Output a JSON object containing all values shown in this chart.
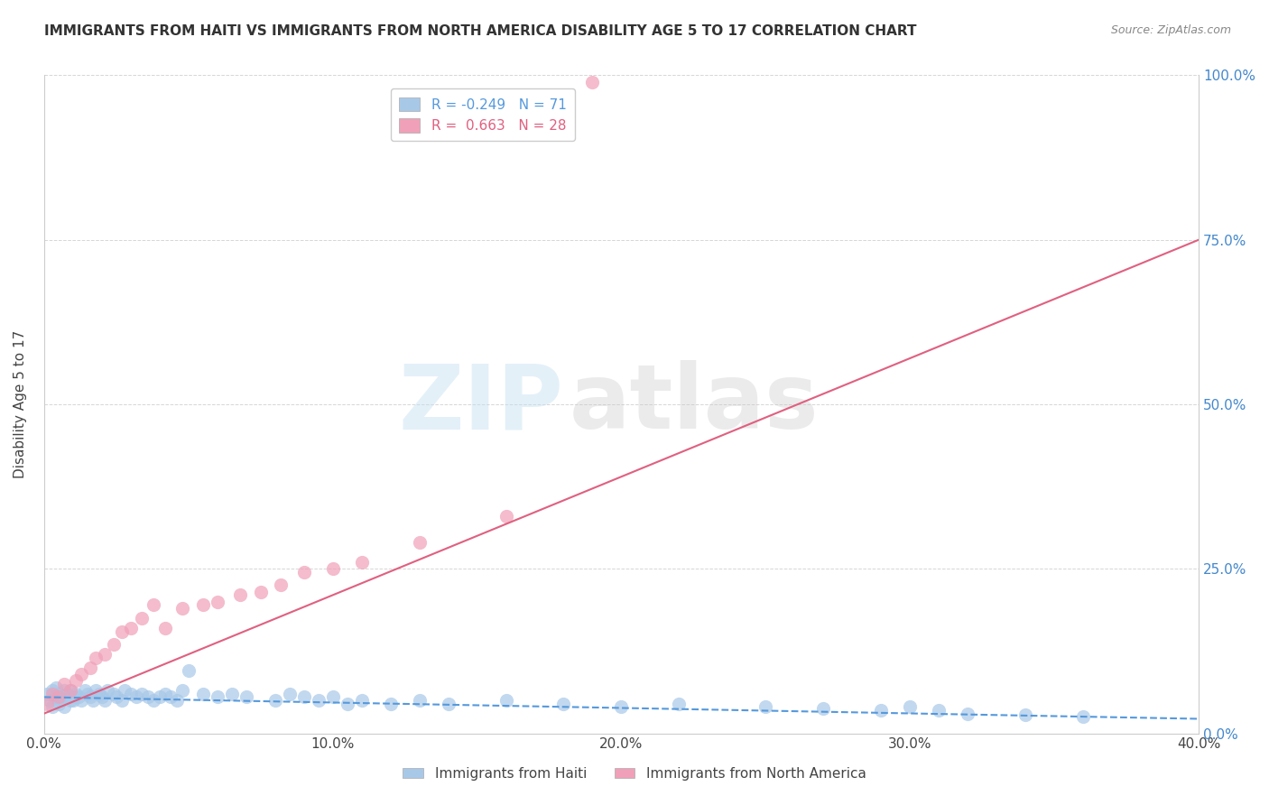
{
  "title": "IMMIGRANTS FROM HAITI VS IMMIGRANTS FROM NORTH AMERICA DISABILITY AGE 5 TO 17 CORRELATION CHART",
  "source": "Source: ZipAtlas.com",
  "ylabel": "Disability Age 5 to 17",
  "legend_label1": "Immigrants from Haiti",
  "legend_label2": "Immigrants from North America",
  "R1": -0.249,
  "N1": 71,
  "R2": 0.663,
  "N2": 28,
  "color1": "#a8c8e8",
  "color2": "#f0a0b8",
  "line_color1": "#5599dd",
  "line_color2": "#e06080",
  "right_tick_color": "#4488cc",
  "xlim": [
    0.0,
    0.4
  ],
  "ylim": [
    0.0,
    1.0
  ],
  "xticks": [
    0.0,
    0.1,
    0.2,
    0.3,
    0.4
  ],
  "yticks": [
    0.0,
    0.25,
    0.5,
    0.75,
    1.0
  ],
  "xtick_labels": [
    "0.0%",
    "10.0%",
    "20.0%",
    "30.0%",
    "40.0%"
  ],
  "ytick_labels": [
    "0.0%",
    "25.0%",
    "50.0%",
    "75.0%",
    "100.0%"
  ],
  "watermark_zip": "ZIP",
  "watermark_atlas": "atlas",
  "haiti_x": [
    0.001,
    0.002,
    0.003,
    0.003,
    0.004,
    0.004,
    0.005,
    0.005,
    0.006,
    0.006,
    0.007,
    0.007,
    0.008,
    0.008,
    0.009,
    0.009,
    0.01,
    0.01,
    0.011,
    0.012,
    0.013,
    0.014,
    0.015,
    0.016,
    0.017,
    0.018,
    0.019,
    0.02,
    0.021,
    0.022,
    0.024,
    0.025,
    0.027,
    0.028,
    0.03,
    0.032,
    0.034,
    0.036,
    0.038,
    0.04,
    0.042,
    0.044,
    0.046,
    0.048,
    0.05,
    0.055,
    0.06,
    0.065,
    0.07,
    0.08,
    0.085,
    0.09,
    0.095,
    0.1,
    0.105,
    0.11,
    0.12,
    0.13,
    0.14,
    0.16,
    0.18,
    0.2,
    0.22,
    0.25,
    0.27,
    0.29,
    0.3,
    0.31,
    0.32,
    0.34,
    0.36
  ],
  "haiti_y": [
    0.06,
    0.05,
    0.04,
    0.065,
    0.055,
    0.07,
    0.045,
    0.06,
    0.055,
    0.05,
    0.065,
    0.04,
    0.06,
    0.055,
    0.05,
    0.065,
    0.055,
    0.05,
    0.06,
    0.055,
    0.05,
    0.065,
    0.06,
    0.055,
    0.05,
    0.065,
    0.06,
    0.055,
    0.05,
    0.065,
    0.06,
    0.055,
    0.05,
    0.065,
    0.06,
    0.055,
    0.06,
    0.055,
    0.05,
    0.055,
    0.06,
    0.055,
    0.05,
    0.065,
    0.095,
    0.06,
    0.055,
    0.06,
    0.055,
    0.05,
    0.06,
    0.055,
    0.05,
    0.055,
    0.045,
    0.05,
    0.045,
    0.05,
    0.045,
    0.05,
    0.045,
    0.04,
    0.045,
    0.04,
    0.038,
    0.035,
    0.04,
    0.035,
    0.03,
    0.028,
    0.025
  ],
  "northam_x": [
    0.001,
    0.003,
    0.005,
    0.007,
    0.009,
    0.011,
    0.013,
    0.016,
    0.018,
    0.021,
    0.024,
    0.027,
    0.03,
    0.034,
    0.038,
    0.042,
    0.048,
    0.055,
    0.06,
    0.068,
    0.075,
    0.082,
    0.09,
    0.1,
    0.11,
    0.13,
    0.16,
    0.19
  ],
  "northam_y": [
    0.045,
    0.06,
    0.055,
    0.075,
    0.065,
    0.08,
    0.09,
    0.1,
    0.115,
    0.12,
    0.135,
    0.155,
    0.16,
    0.175,
    0.195,
    0.16,
    0.19,
    0.195,
    0.2,
    0.21,
    0.215,
    0.225,
    0.245,
    0.25,
    0.26,
    0.29,
    0.33,
    0.99
  ],
  "line1_x0": 0.0,
  "line1_x1": 0.4,
  "line1_y0": 0.055,
  "line1_y1": 0.022,
  "line2_x0": 0.0,
  "line2_x1": 0.4,
  "line2_y0": 0.03,
  "line2_y1": 0.75
}
